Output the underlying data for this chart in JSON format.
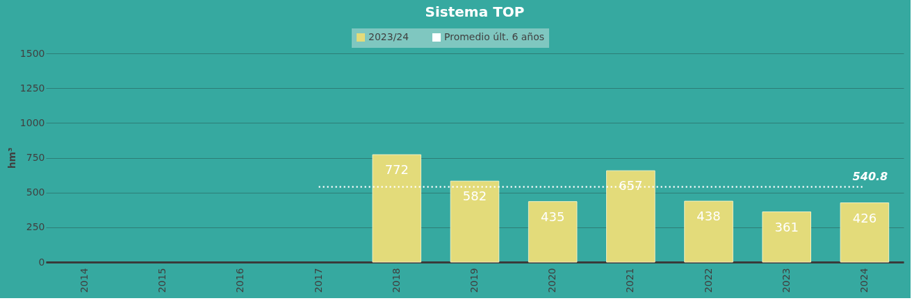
{
  "chart_data": {
    "type": "bar",
    "title": "Sistema TOP",
    "ylabel": "hm³",
    "categories": [
      "2014",
      "2015",
      "2016",
      "2017",
      "2018",
      "2019",
      "2020",
      "2021",
      "2022",
      "2023",
      "2024"
    ],
    "series": [
      {
        "name": "2023/24",
        "color": "#e3db7a",
        "values": [
          null,
          null,
          null,
          null,
          772,
          582,
          435,
          657,
          438,
          361,
          426
        ],
        "value_labels": [
          null,
          null,
          null,
          null,
          "772",
          "582",
          "435",
          "657",
          "438",
          "361",
          "426"
        ]
      },
      {
        "name": "Promedio últ. 6 años",
        "type": "line",
        "line_style": "dotted",
        "color": "#ffffff",
        "values": [
          null,
          null,
          null,
          540.8,
          540.8,
          540.8,
          540.8,
          540.8,
          540.8,
          540.8,
          540.8
        ]
      }
    ],
    "annotations": [
      {
        "text": "540.8",
        "x": "2024",
        "y": 540.8
      }
    ],
    "ylim": [
      0,
      1500
    ],
    "yticks": [
      0,
      250,
      500,
      750,
      1000,
      1250,
      1500
    ],
    "grid": "y",
    "legend": "top"
  }
}
